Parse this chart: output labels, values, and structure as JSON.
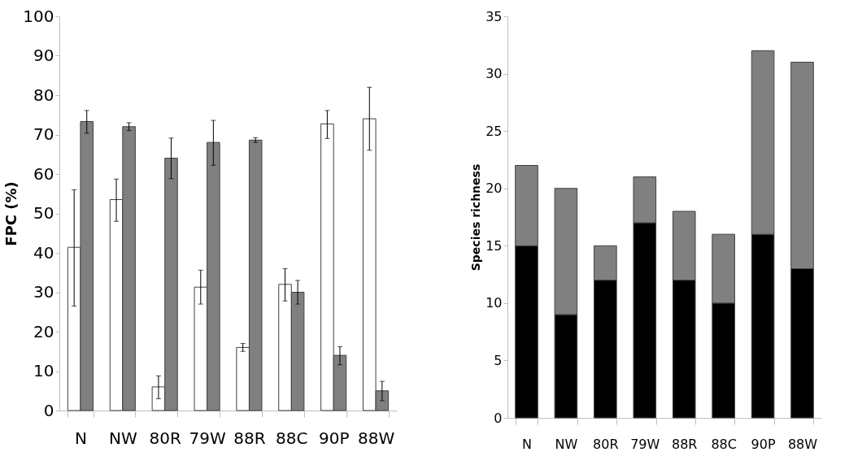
{
  "chart_data": [
    {
      "type": "bar",
      "ylabel": "FPC (%)",
      "categories": [
        "N",
        "NW",
        "80R",
        "79W",
        "88R",
        "88C",
        "90P",
        "88W"
      ],
      "ylim": [
        0,
        100
      ],
      "yticks": [
        0,
        10,
        20,
        30,
        40,
        50,
        60,
        70,
        80,
        90,
        100
      ],
      "grid": false,
      "legend": false,
      "series": [
        {
          "color": "#ffffff",
          "values": [
            41.4,
            53.5,
            6,
            31.3,
            16,
            32,
            72.7,
            74
          ],
          "errors": [
            [
              26.5,
              56
            ],
            [
              48,
              58.7
            ],
            [
              3,
              8.8
            ],
            [
              27,
              35.6
            ],
            [
              15,
              17
            ],
            [
              27.8,
              36
            ],
            [
              69,
              76.1
            ],
            [
              66,
              82
            ]
          ]
        },
        {
          "color": "#808080",
          "values": [
            73.3,
            72,
            64,
            68,
            68.6,
            30,
            14,
            5
          ],
          "errors": [
            [
              70.3,
              76.1
            ],
            [
              71,
              73
            ],
            [
              58.8,
              69.1
            ],
            [
              62.2,
              73.6
            ],
            [
              68,
              69.2
            ],
            [
              27,
              33
            ],
            [
              11.6,
              16.2
            ],
            [
              2.5,
              7.4
            ]
          ]
        }
      ]
    },
    {
      "type": "bar",
      "stacked": true,
      "ylabel": "Species richness",
      "categories": [
        "N",
        "NW",
        "80R",
        "79W",
        "88R",
        "88C",
        "90P",
        "88W"
      ],
      "ylim": [
        0,
        35
      ],
      "yticks": [
        0,
        5,
        10,
        15,
        20,
        25,
        30,
        35
      ],
      "grid": false,
      "legend": false,
      "series": [
        {
          "color": "#000000",
          "values": [
            15,
            9,
            12,
            17,
            12,
            10,
            16,
            13
          ]
        },
        {
          "color": "#808080",
          "values": [
            7,
            11,
            3,
            4,
            6,
            6,
            16,
            18
          ]
        }
      ]
    }
  ]
}
